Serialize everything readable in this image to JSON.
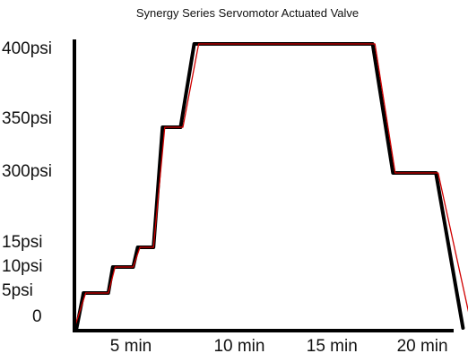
{
  "chart_data": {
    "type": "line",
    "title": "Synergy Series Servomotor Actuated Valve",
    "xlabel": "",
    "ylabel": "",
    "x_ticks": [
      "5 min",
      "10 min",
      "15 min",
      "20 min"
    ],
    "y_ticks": [
      "400psi",
      "350psi",
      "300psi",
      "15psi",
      "10psi",
      "5psi",
      "0"
    ],
    "y_scale": "non-linear (labeled levels only)",
    "grid": false,
    "legend": "none",
    "series": [
      {
        "color": "#000000",
        "points": [
          {
            "x": 0.1,
            "y": "0"
          },
          {
            "x": 0.4,
            "y": "5psi"
          },
          {
            "x": 1.5,
            "y": "5psi"
          },
          {
            "x": 1.7,
            "y": "10psi"
          },
          {
            "x": 2.6,
            "y": "10psi"
          },
          {
            "x": 2.8,
            "y": "15psi"
          },
          {
            "x": 3.5,
            "y": "15psi"
          },
          {
            "x": 3.9,
            "y": "350psi"
          },
          {
            "x": 4.7,
            "y": "350psi"
          },
          {
            "x": 5.3,
            "y": "400psi"
          },
          {
            "x": 13.2,
            "y": "400psi"
          },
          {
            "x": 14.1,
            "y": "300psi"
          },
          {
            "x": 16.0,
            "y": "300psi"
          },
          {
            "x": 17.2,
            "y": "0"
          }
        ]
      },
      {
        "color": "#d00000",
        "points": [
          {
            "x": 0.0,
            "y": "0"
          },
          {
            "x": 0.5,
            "y": "5psi"
          },
          {
            "x": 1.5,
            "y": "5psi"
          },
          {
            "x": 1.8,
            "y": "10psi"
          },
          {
            "x": 2.6,
            "y": "10psi"
          },
          {
            "x": 2.9,
            "y": "15psi"
          },
          {
            "x": 3.5,
            "y": "15psi"
          },
          {
            "x": 4.0,
            "y": "350psi"
          },
          {
            "x": 4.8,
            "y": "350psi"
          },
          {
            "x": 5.5,
            "y": "400psi"
          },
          {
            "x": 13.3,
            "y": "400psi"
          },
          {
            "x": 14.2,
            "y": "300psi"
          },
          {
            "x": 16.1,
            "y": "300psi"
          },
          {
            "x": 17.6,
            "y": "0"
          }
        ]
      }
    ],
    "colors": {
      "axis": "#000000",
      "text": "#111111"
    }
  }
}
